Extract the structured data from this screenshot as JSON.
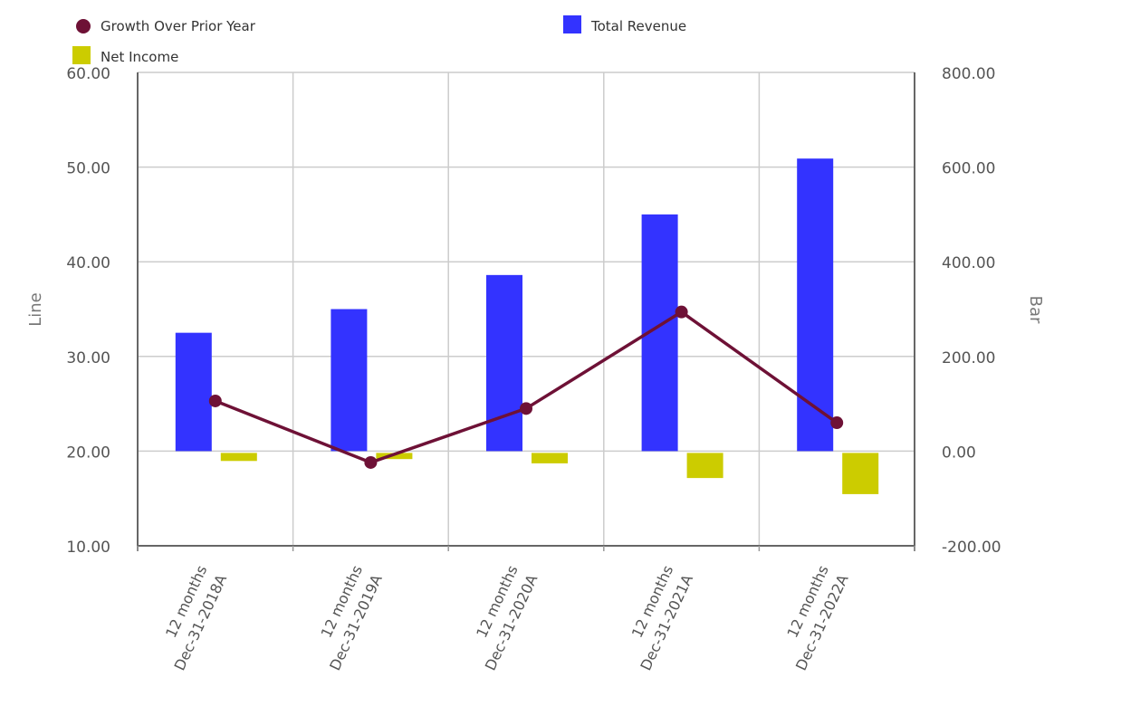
{
  "chart_data": {
    "type": "bar",
    "categories": [
      [
        "12 months",
        "Dec-31-2018A"
      ],
      [
        "12 months",
        "Dec-31-2019A"
      ],
      [
        "12 months",
        "Dec-31-2020A"
      ],
      [
        "12 months",
        "Dec-31-2021A"
      ],
      [
        "12 months",
        "Dec-31-2022A"
      ]
    ],
    "series": [
      {
        "name": "Total Revenue",
        "type": "bar",
        "axis": "right",
        "color": "#3333ff",
        "values": [
          250,
          300,
          372,
          500,
          618
        ]
      },
      {
        "name": "Net Income",
        "type": "bar",
        "axis": "right",
        "color": "#cccc00",
        "values": [
          -17,
          -13,
          -22,
          -53,
          -87
        ]
      },
      {
        "name": "Growth Over Prior Year",
        "type": "line",
        "axis": "left",
        "color": "#6e1136",
        "values": [
          25.3,
          18.8,
          24.5,
          34.7,
          23.0
        ]
      }
    ],
    "y_left": {
      "label": "Line",
      "min": 10,
      "max": 60,
      "ticks": [
        "10.00",
        "20.00",
        "30.00",
        "40.00",
        "50.00",
        "60.00"
      ]
    },
    "y_right": {
      "label": "Bar",
      "min": -200,
      "max": 800,
      "ticks": [
        "-200.00",
        "0.00",
        "200.00",
        "400.00",
        "600.00",
        "800.00"
      ]
    },
    "grid": true,
    "legend": [
      "Growth Over Prior Year",
      "Total Revenue",
      "Net Income"
    ],
    "legend_position": "top-left"
  }
}
